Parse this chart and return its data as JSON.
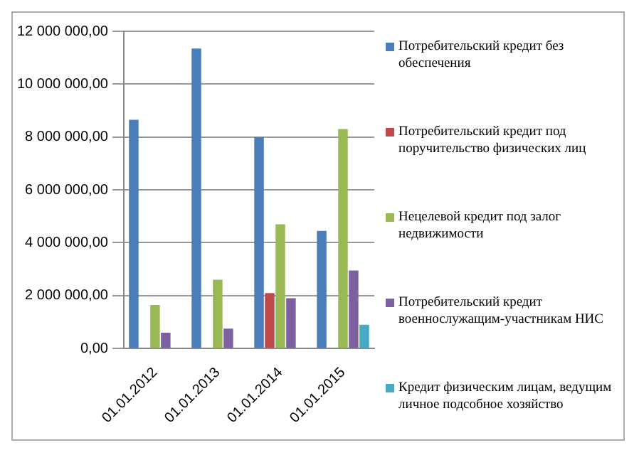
{
  "chart_data": {
    "type": "bar",
    "categories": [
      "01.01.2012",
      "01.01.2013",
      "01.01.2014",
      "01.01.2015"
    ],
    "series": [
      {
        "name": "Потребительский кредит без обеспечения",
        "color": "#4a7ebb",
        "values": [
          8650000,
          11350000,
          8000000,
          4450000
        ]
      },
      {
        "name": "Потребительский кредит под поручительство физических лиц",
        "color": "#be4b48",
        "values": [
          20000,
          20000,
          2100000,
          20000
        ]
      },
      {
        "name": "Нецелевой кредит под залог недвижимости",
        "color": "#98b954",
        "values": [
          1650000,
          2600000,
          4700000,
          8300000
        ]
      },
      {
        "name": "Потребительский кредит военнослужащим-участникам НИС",
        "color": "#7d60a0",
        "values": [
          600000,
          750000,
          1900000,
          2950000
        ]
      },
      {
        "name": "Кредит физическим лицам, ведущим личное подсобное хозяйство",
        "color": "#46aac5",
        "values": [
          20000,
          20000,
          20000,
          900000
        ]
      }
    ],
    "ylim": [
      0,
      12000000
    ],
    "yticks": [
      {
        "value": 0,
        "label": "0,00"
      },
      {
        "value": 2000000,
        "label": "2 000 000,00"
      },
      {
        "value": 4000000,
        "label": "4 000 000,00"
      },
      {
        "value": 6000000,
        "label": "6 000 000,00"
      },
      {
        "value": 8000000,
        "label": "8 000 000,00"
      },
      {
        "value": 10000000,
        "label": "10 000 000,00"
      },
      {
        "value": 12000000,
        "label": "12 000 000,00"
      }
    ],
    "grid": "y",
    "legend": "right"
  }
}
